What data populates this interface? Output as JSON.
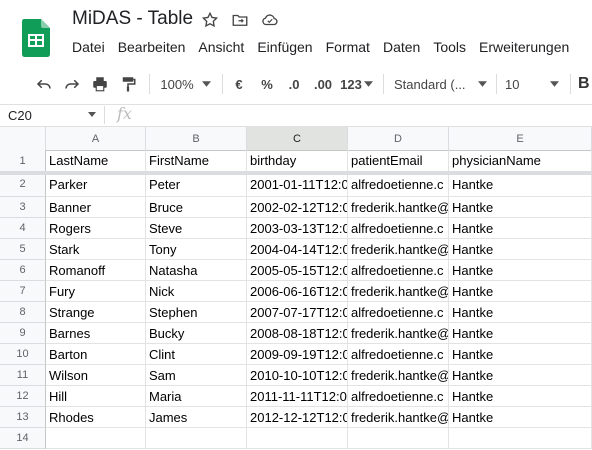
{
  "app": {
    "title": "MiDAS - Table",
    "menu": [
      "Datei",
      "Bearbeiten",
      "Ansicht",
      "Einfügen",
      "Format",
      "Daten",
      "Tools",
      "Erweiterungen"
    ]
  },
  "toolbar": {
    "zoom": "100%",
    "currency": "€",
    "percent": "%",
    "decrease_decimals": ".0",
    "increase_decimals": ".00",
    "more_formats": "123",
    "font": "Standard (...",
    "font_size": "10",
    "bold": "B"
  },
  "formula_bar": {
    "cell_ref": "C20",
    "fx": "fx",
    "value": ""
  },
  "columns": [
    "A",
    "B",
    "C",
    "D",
    "E"
  ],
  "rows": [
    "1",
    "2",
    "3",
    "4",
    "5",
    "6",
    "7",
    "8",
    "9",
    "10",
    "11",
    "12",
    "13",
    "14"
  ],
  "header_row": [
    "LastName",
    "FirstName",
    "birthday",
    "patientEmail",
    "physicianName"
  ],
  "table": [
    [
      "Parker",
      "Peter",
      "2001-01-11T12:0",
      "alfredoetienne.c",
      "Hantke"
    ],
    [
      "Banner",
      "Bruce",
      "2002-02-12T12:0",
      "frederik.hantke@",
      "Hantke"
    ],
    [
      "Rogers",
      "Steve",
      "2003-03-13T12:0",
      "alfredoetienne.c",
      "Hantke"
    ],
    [
      "Stark",
      "Tony",
      "2004-04-14T12:0",
      "frederik.hantke@",
      "Hantke"
    ],
    [
      "Romanoff",
      "Natasha",
      "2005-05-15T12:0",
      "alfredoetienne.c",
      "Hantke"
    ],
    [
      "Fury",
      "Nick",
      "2006-06-16T12:0",
      "frederik.hantke@",
      "Hantke"
    ],
    [
      "Strange",
      "Stephen",
      "2007-07-17T12:0",
      "alfredoetienne.c",
      "Hantke"
    ],
    [
      "Barnes",
      "Bucky",
      "2008-08-18T12:0",
      "frederik.hantke@",
      "Hantke"
    ],
    [
      "Barton",
      "Clint",
      "2009-09-19T12:0",
      "alfredoetienne.c",
      "Hantke"
    ],
    [
      "Wilson",
      "Sam",
      "2010-10-10T12:0",
      "frederik.hantke@",
      "Hantke"
    ],
    [
      "Hill",
      "Maria",
      "2011-11-11T12:0",
      "alfredoetienne.c",
      "Hantke"
    ],
    [
      "Rhodes",
      "James",
      "2012-12-12T12:0",
      "frederik.hantke@",
      "Hantke"
    ]
  ],
  "colors": {
    "sheets_green": "#0f9d58",
    "selected_header": "#e1e3e1"
  }
}
